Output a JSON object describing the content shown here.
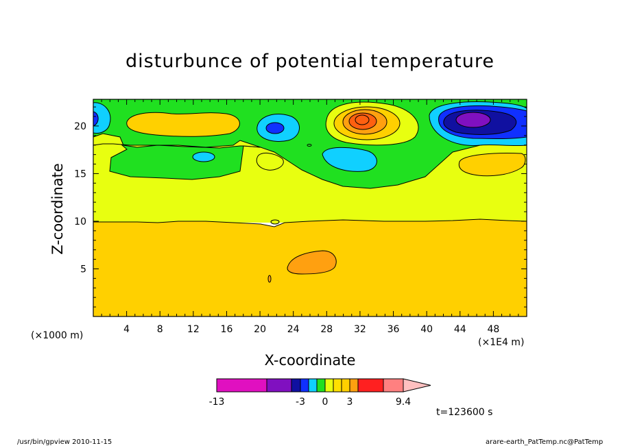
{
  "chart_data": {
    "type": "heatmap",
    "title": "disturbunce of potential temperature",
    "xlabel": "X-coordinate",
    "ylabel": "Z-coordinate",
    "x_unit_left": "(×1000 m)",
    "x_unit_right": "(×1E4 m)",
    "xlim": [
      0,
      52
    ],
    "ylim": [
      0,
      22.8
    ],
    "x_ticks": [
      "4",
      "8",
      "12",
      "16",
      "20",
      "24",
      "28",
      "32",
      "36",
      "40",
      "44",
      "48"
    ],
    "y_ticks": [
      "5",
      "10",
      "15",
      "20"
    ],
    "colorbar": {
      "tick_labels": [
        "-13",
        "-3",
        "0",
        "3",
        "9.4"
      ],
      "colors": [
        "#e010c0",
        "#e010c0",
        "#8010c0",
        "#1010a0",
        "#1030ff",
        "#10d0ff",
        "#20e020",
        "#e8ff10",
        "#ffd000",
        "#ffa010",
        "#ff6010",
        "#ff2020",
        "#ff8080",
        "#ffc0c0"
      ]
    },
    "time_label": "t=123600 s",
    "footer_left": "/usr/bin/gpview  2010-11-15",
    "footer_right": "arare-earth_PatTemp.nc@PatTemp"
  }
}
